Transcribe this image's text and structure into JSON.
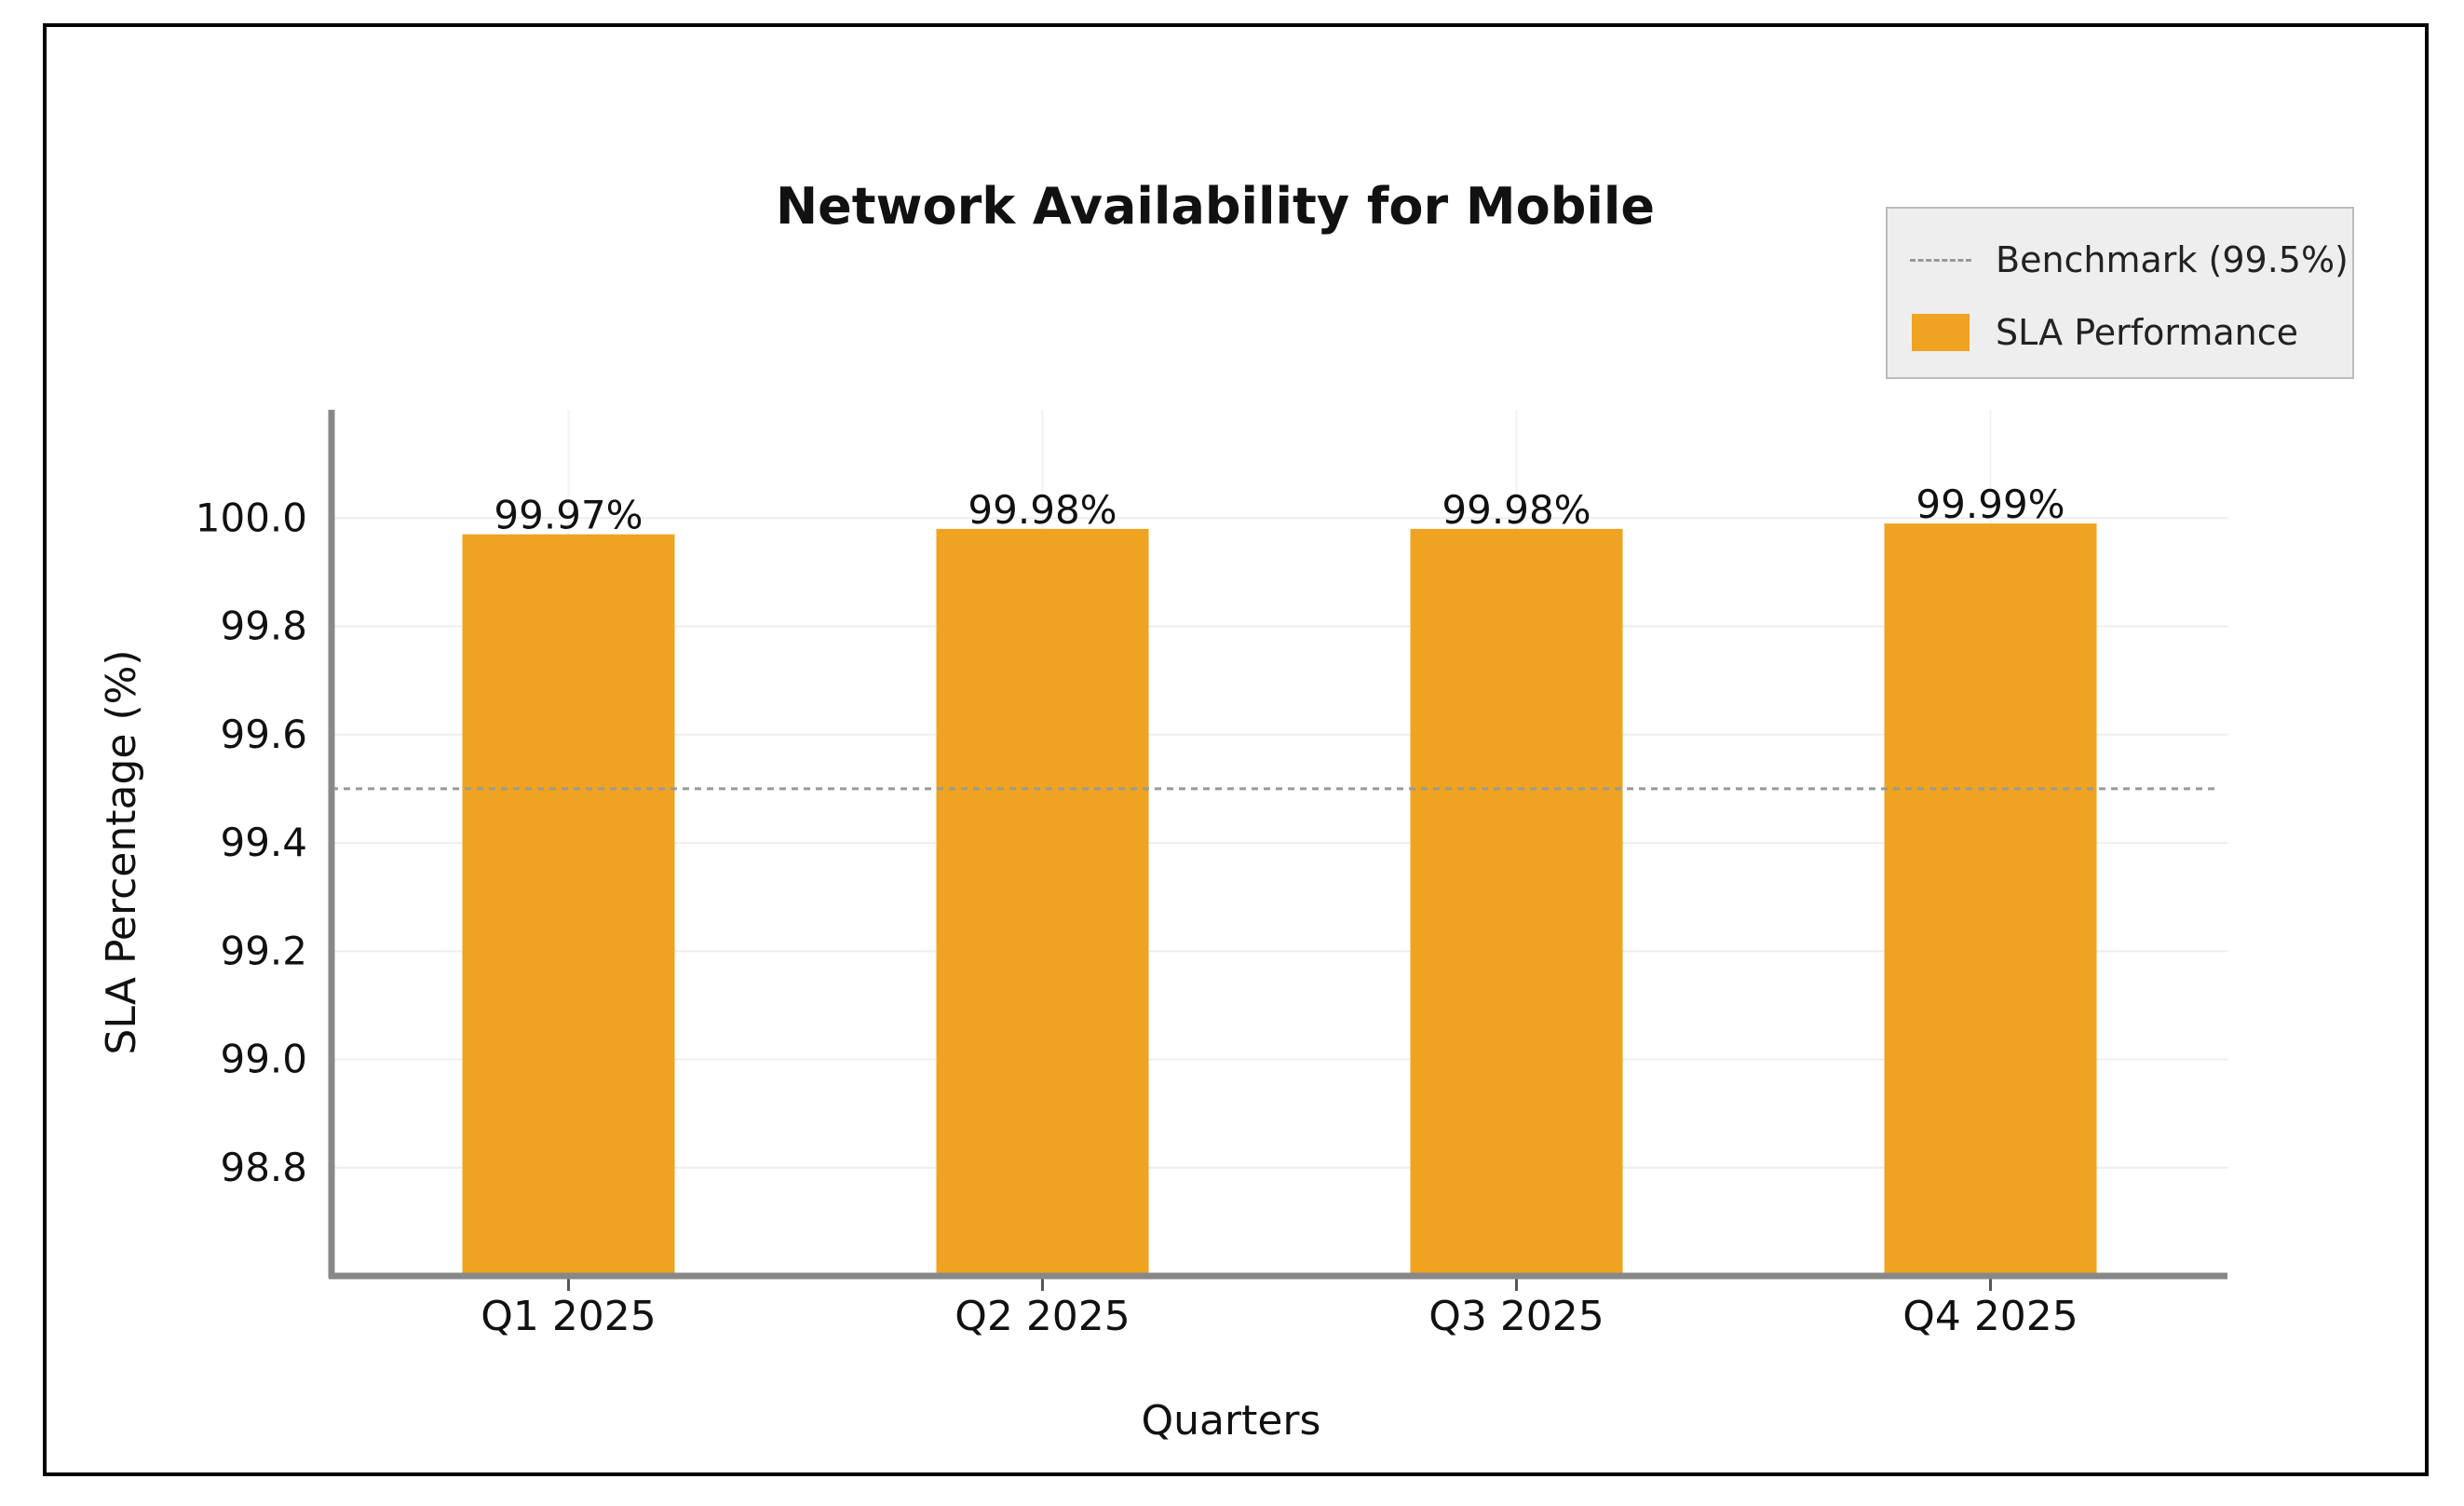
{
  "chart_data": {
    "type": "bar",
    "title": "Network Availability for Mobile",
    "xlabel": "Quarters",
    "ylabel": "SLA Percentage (%)",
    "categories": [
      "Q1 2025",
      "Q2 2025",
      "Q3 2025",
      "Q4 2025"
    ],
    "series": [
      {
        "name": "SLA Performance",
        "values": [
          99.97,
          99.98,
          99.98,
          99.99
        ],
        "data_labels": [
          "99.97%",
          "99.98%",
          "99.98%",
          "99.99%"
        ],
        "color": "#F0A320"
      }
    ],
    "benchmark": {
      "name": "Benchmark (99.5%)",
      "value": 99.5,
      "color": "#999999",
      "style": "dashed"
    },
    "ylim": [
      98.6,
      100.2
    ],
    "yticks": [
      "98.8",
      "99.0",
      "99.2",
      "99.4",
      "99.6",
      "99.8",
      "100.0"
    ],
    "grid": true,
    "legend_position": "top-right"
  }
}
